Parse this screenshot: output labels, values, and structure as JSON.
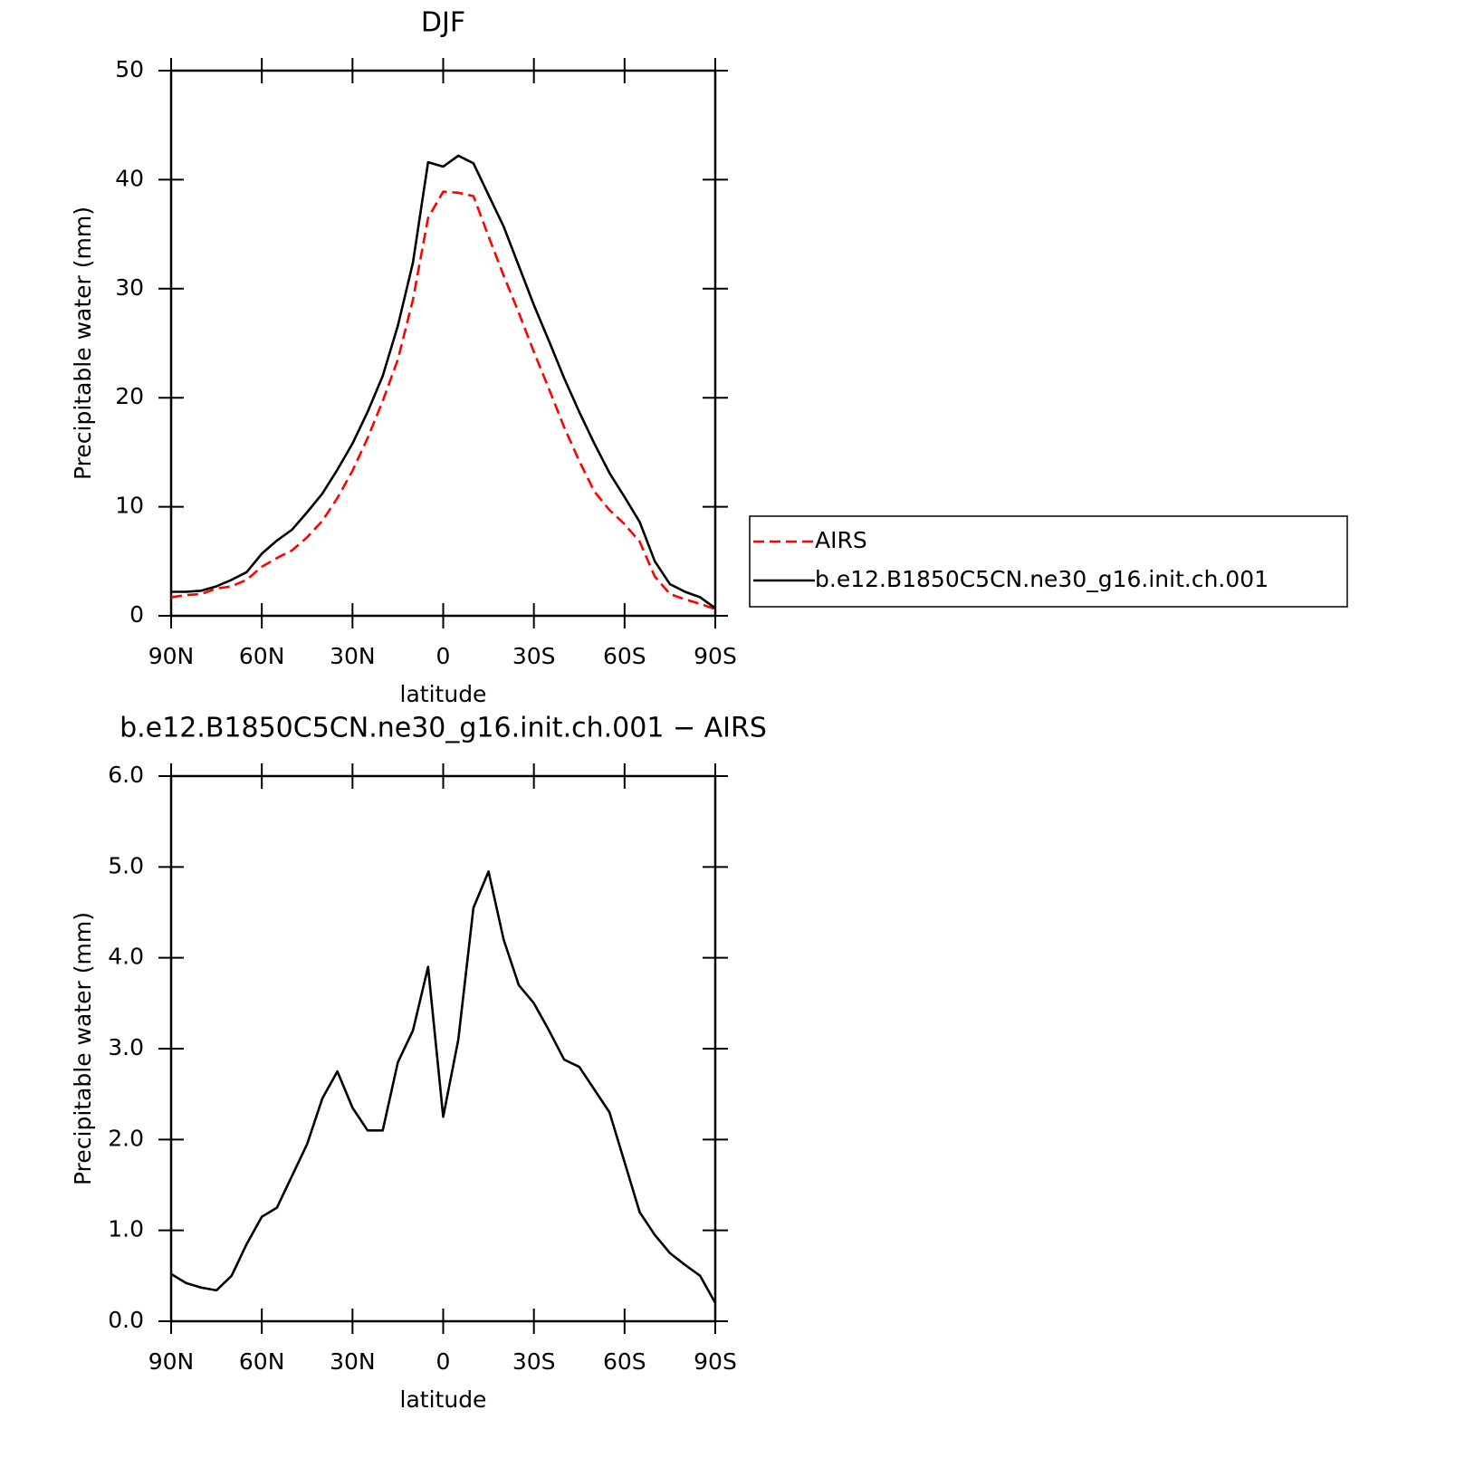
{
  "chart_data": [
    {
      "type": "line",
      "title": "DJF",
      "xlabel": "latitude",
      "ylabel": "Precipitable water (mm)",
      "x": [
        90,
        85,
        80,
        75,
        70,
        65,
        60,
        55,
        50,
        45,
        40,
        35,
        30,
        25,
        20,
        15,
        10,
        5,
        0,
        -5,
        -10,
        -15,
        -20,
        -25,
        -30,
        -35,
        -40,
        -45,
        -50,
        -55,
        -60,
        -65,
        -70,
        -75,
        -80,
        -85,
        -90
      ],
      "series": [
        {
          "name": "AIRS",
          "color": "#ff0000",
          "dash": "dashed",
          "values": [
            1.7,
            1.9,
            2.0,
            2.5,
            2.7,
            3.3,
            4.5,
            5.3,
            6.0,
            7.2,
            8.7,
            10.8,
            13.3,
            16.3,
            19.7,
            23.5,
            29,
            36.5,
            38.9,
            38.8,
            38.5,
            34.8,
            31.2,
            27.8,
            24.2,
            20.8,
            17.3,
            14.2,
            11.4,
            9.7,
            8.4,
            6.8,
            3.6,
            2.0,
            1.5,
            1.1,
            0.6
          ]
        },
        {
          "name": "b.e12.B1850C5CN.ne30_g16.init.ch.001",
          "color": "#000000",
          "dash": "solid",
          "values": [
            2.2,
            2.2,
            2.3,
            2.7,
            3.3,
            4.0,
            5.7,
            6.9,
            7.9,
            9.5,
            11.2,
            13.4,
            15.8,
            18.7,
            22,
            26.6,
            32.4,
            41.6,
            41.2,
            42.2,
            41.5,
            38.6,
            35.7,
            32.1,
            28.5,
            25.2,
            21.8,
            18.7,
            15.8,
            13.1,
            10.9,
            8.6,
            5.0,
            2.9,
            2.2,
            1.7,
            0.7
          ]
        }
      ],
      "xlim": [
        90,
        -90
      ],
      "xticks": [
        {
          "value": 90,
          "label": "90N"
        },
        {
          "value": 60,
          "label": "60N"
        },
        {
          "value": 30,
          "label": "30N"
        },
        0,
        {
          "value": -30,
          "label": "30S"
        },
        {
          "value": -60,
          "label": "60S"
        },
        {
          "value": -90,
          "label": "90S"
        }
      ],
      "ylim": [
        0,
        50
      ],
      "yticks": [
        0,
        10,
        20,
        30,
        40,
        50
      ],
      "legend": "right"
    },
    {
      "type": "line",
      "title": "b.e12.B1850C5CN.ne30_g16.init.ch.001 − AIRS",
      "xlabel": "latitude",
      "ylabel": "Precipitable water (mm)",
      "x": [
        90,
        85,
        80,
        75,
        70,
        65,
        60,
        55,
        50,
        45,
        40,
        35,
        30,
        25,
        20,
        15,
        10,
        5,
        0,
        -5,
        -10,
        -15,
        -20,
        -25,
        -30,
        -35,
        -40,
        -45,
        -50,
        -55,
        -60,
        -65,
        -70,
        -75,
        -80,
        -85,
        -90
      ],
      "series": [
        {
          "color": "#000000",
          "dash": "solid",
          "values": [
            0.52,
            0.42,
            0.37,
            0.34,
            0.5,
            0.85,
            1.15,
            1.25,
            1.6,
            1.95,
            2.45,
            2.75,
            2.35,
            2.1,
            2.1,
            2.85,
            3.2,
            3.9,
            2.25,
            3.1,
            4.55,
            4.95,
            4.2,
            3.7,
            3.5,
            3.2,
            2.88,
            2.8,
            2.55,
            2.3,
            1.75,
            1.2,
            0.95,
            0.75,
            0.62,
            0.5,
            0.2
          ]
        }
      ],
      "xlim": [
        90,
        -90
      ],
      "xticks": [
        {
          "value": 90,
          "label": "90N"
        },
        {
          "value": 60,
          "label": "60N"
        },
        {
          "value": 30,
          "label": "30N"
        },
        0,
        {
          "value": -30,
          "label": "30S"
        },
        {
          "value": -60,
          "label": "60S"
        },
        {
          "value": -90,
          "label": "90S"
        }
      ],
      "ylim": [
        0,
        6
      ],
      "yticks": [
        {
          "value": 0,
          "label": "0.0"
        },
        {
          "value": 1,
          "label": "1.0"
        },
        {
          "value": 2,
          "label": "2.0"
        },
        {
          "value": 3,
          "label": "3.0"
        },
        {
          "value": 4,
          "label": "4.0"
        },
        {
          "value": 5,
          "label": "5.0"
        },
        {
          "value": 6,
          "label": "6.0"
        }
      ]
    }
  ]
}
